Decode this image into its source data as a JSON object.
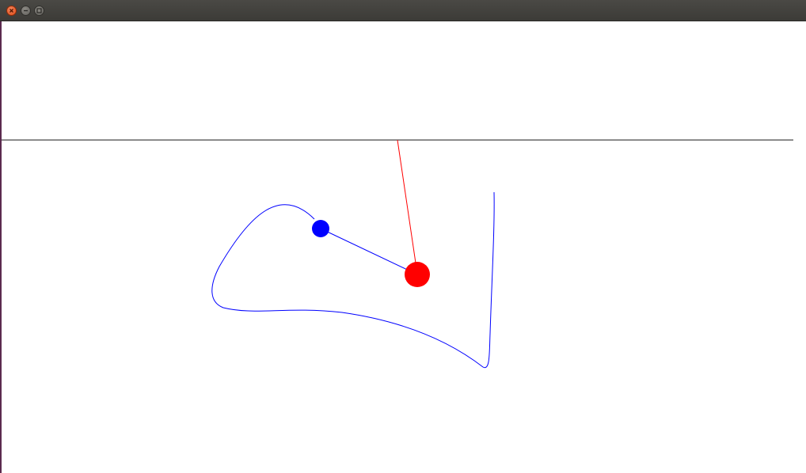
{
  "window": {
    "title": "",
    "buttons": [
      {
        "name": "close",
        "icon": "close-icon",
        "color": "#df4b16"
      },
      {
        "name": "minimize",
        "icon": "minimize-icon",
        "color": "#5f5e5a"
      },
      {
        "name": "maximize",
        "icon": "maximize-icon",
        "color": "#5f5e5a"
      }
    ]
  },
  "scene": {
    "colors": {
      "background": "#ffffff",
      "ground_line": "#666666",
      "trajectory": "#0000ff",
      "link": "#0000ff",
      "rope": "#ff0000",
      "small_mass": "#0000ff",
      "large_mass": "#ff0000"
    },
    "elements": [
      "ground-line",
      "rope-line",
      "trajectory-curve",
      "link-line",
      "small-mass",
      "large-mass"
    ]
  }
}
